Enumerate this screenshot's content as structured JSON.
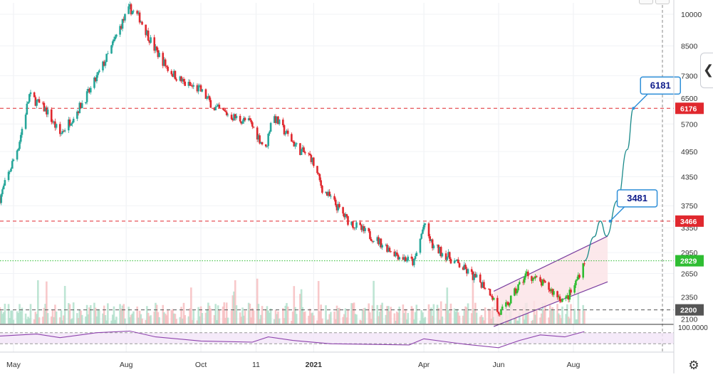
{
  "chart_data": {
    "type": "candlestick",
    "price_scale": "log",
    "ylim": [
      2050,
      10600
    ],
    "x_start": "2020-04-20",
    "x_end": "2021-10-22",
    "x_ticks": [
      {
        "date": "2020-05-01",
        "label": "May"
      },
      {
        "date": "2020-08-01",
        "label": "Aug"
      },
      {
        "date": "2020-10-01",
        "label": "Oct"
      },
      {
        "date": "2020-11-15",
        "label": "11"
      },
      {
        "date": "2021-01-01",
        "label": "2021"
      },
      {
        "date": "2021-04-01",
        "label": "Apr"
      },
      {
        "date": "2021-06-01",
        "label": "Jun"
      },
      {
        "date": "2021-08-01",
        "label": "Aug"
      }
    ],
    "y_ticks": [
      10000,
      8500,
      7300,
      6500,
      5700,
      4950,
      4350,
      3750,
      3350,
      2950,
      2650,
      2350,
      2100
    ],
    "price_path": [
      [
        "2020-04-20",
        3900
      ],
      [
        "2020-05-05",
        5100
      ],
      [
        "2020-05-14",
        6600
      ],
      [
        "2020-05-28",
        6100
      ],
      [
        "2020-06-08",
        5400
      ],
      [
        "2020-06-22",
        6100
      ],
      [
        "2020-07-03",
        6800
      ],
      [
        "2020-07-18",
        8200
      ],
      [
        "2020-07-28",
        9500
      ],
      [
        "2020-08-04",
        10300
      ],
      [
        "2020-08-12",
        9800
      ],
      [
        "2020-08-24",
        8400
      ],
      [
        "2020-09-05",
        7500
      ],
      [
        "2020-09-18",
        7000
      ],
      [
        "2020-09-30",
        6800
      ],
      [
        "2020-10-12",
        6200
      ],
      [
        "2020-10-28",
        5900
      ],
      [
        "2020-11-10",
        5750
      ],
      [
        "2020-11-23",
        5000
      ],
      [
        "2020-11-28",
        6000
      ],
      [
        "2020-12-08",
        5500
      ],
      [
        "2020-12-20",
        5000
      ],
      [
        "2020-12-30",
        4800
      ],
      [
        "2021-01-08",
        4100
      ],
      [
        "2021-01-18",
        3800
      ],
      [
        "2021-01-28",
        3500
      ],
      [
        "2021-02-10",
        3300
      ],
      [
        "2021-02-25",
        3100
      ],
      [
        "2021-03-12",
        2900
      ],
      [
        "2021-03-24",
        2800
      ],
      [
        "2021-04-01",
        3400
      ],
      [
        "2021-04-08",
        3050
      ],
      [
        "2021-04-20",
        2900
      ],
      [
        "2021-05-01",
        2750
      ],
      [
        "2021-05-12",
        2600
      ],
      [
        "2021-05-20",
        2500
      ],
      [
        "2021-05-26",
        2400
      ],
      [
        "2021-06-01",
        2150
      ],
      [
        "2021-06-08",
        2250
      ],
      [
        "2021-06-16",
        2450
      ],
      [
        "2021-06-24",
        2650
      ],
      [
        "2021-07-02",
        2560
      ],
      [
        "2021-07-10",
        2480
      ],
      [
        "2021-07-18",
        2380
      ],
      [
        "2021-07-25",
        2300
      ],
      [
        "2021-08-01",
        2450
      ],
      [
        "2021-08-08",
        2750
      ],
      [
        "2021-08-10",
        2829
      ]
    ],
    "horizontal_levels": [
      {
        "price": 6176,
        "label": "6176",
        "color": "#e0282e",
        "style": "dashed"
      },
      {
        "price": 3466,
        "label": "3466",
        "color": "#e0282e",
        "style": "dashed"
      },
      {
        "price": 2829,
        "label": "2829",
        "color": "#2ebd32",
        "style": "dotted"
      },
      {
        "price": 2200,
        "label": "2200",
        "color": "#555555",
        "style": "dashed"
      }
    ],
    "channel": {
      "upper": [
        [
          "2021-05-28",
          2420
        ],
        [
          "2021-08-29",
          3210
        ]
      ],
      "lower": [
        [
          "2021-05-28",
          2020
        ],
        [
          "2021-08-29",
          2540
        ]
      ]
    },
    "projection": [
      [
        "2021-08-10",
        2829
      ],
      [
        "2021-08-18",
        3200
      ],
      [
        "2021-08-23",
        3466
      ],
      [
        "2021-08-28",
        3210
      ],
      [
        "2021-09-06",
        3850
      ],
      [
        "2021-09-14",
        5000
      ],
      [
        "2021-09-19",
        6176
      ]
    ],
    "callouts": [
      {
        "text": "6181",
        "anchor_date": "2021-09-19",
        "anchor_price": 6176
      },
      {
        "text": "3481",
        "anchor_date": "2021-08-31",
        "anchor_price": 3466
      }
    ],
    "indicator": {
      "top_label": "100.0000",
      "band": [
        30,
        70
      ],
      "values": [
        [
          "2020-04-20",
          58
        ],
        [
          "2020-05-20",
          65
        ],
        [
          "2020-06-08",
          52
        ],
        [
          "2020-07-08",
          70
        ],
        [
          "2020-08-04",
          76
        ],
        [
          "2020-08-25",
          55
        ],
        [
          "2020-10-01",
          40
        ],
        [
          "2020-11-12",
          36
        ],
        [
          "2020-11-25",
          55
        ],
        [
          "2020-12-15",
          42
        ],
        [
          "2021-01-15",
          30
        ],
        [
          "2021-03-20",
          26
        ],
        [
          "2021-04-01",
          48
        ],
        [
          "2021-05-05",
          28
        ],
        [
          "2021-06-01",
          16
        ],
        [
          "2021-06-18",
          42
        ],
        [
          "2021-07-05",
          62
        ],
        [
          "2021-07-25",
          55
        ],
        [
          "2021-08-10",
          74
        ]
      ]
    }
  },
  "colors": {
    "up": "#26a69a",
    "up_bright": "#2ebd32",
    "down": "#e0282e",
    "channel_fill": "#fce4e8",
    "channel_line": "#7b3fa0",
    "projection": "#1a8a8a",
    "callout_border": "#2f8fd8",
    "callout_text": "#0d1b8a",
    "rsi": "#8e44ad"
  },
  "icons": {
    "side_toggle": "chevron-left-icon",
    "settings": "gear-icon"
  }
}
